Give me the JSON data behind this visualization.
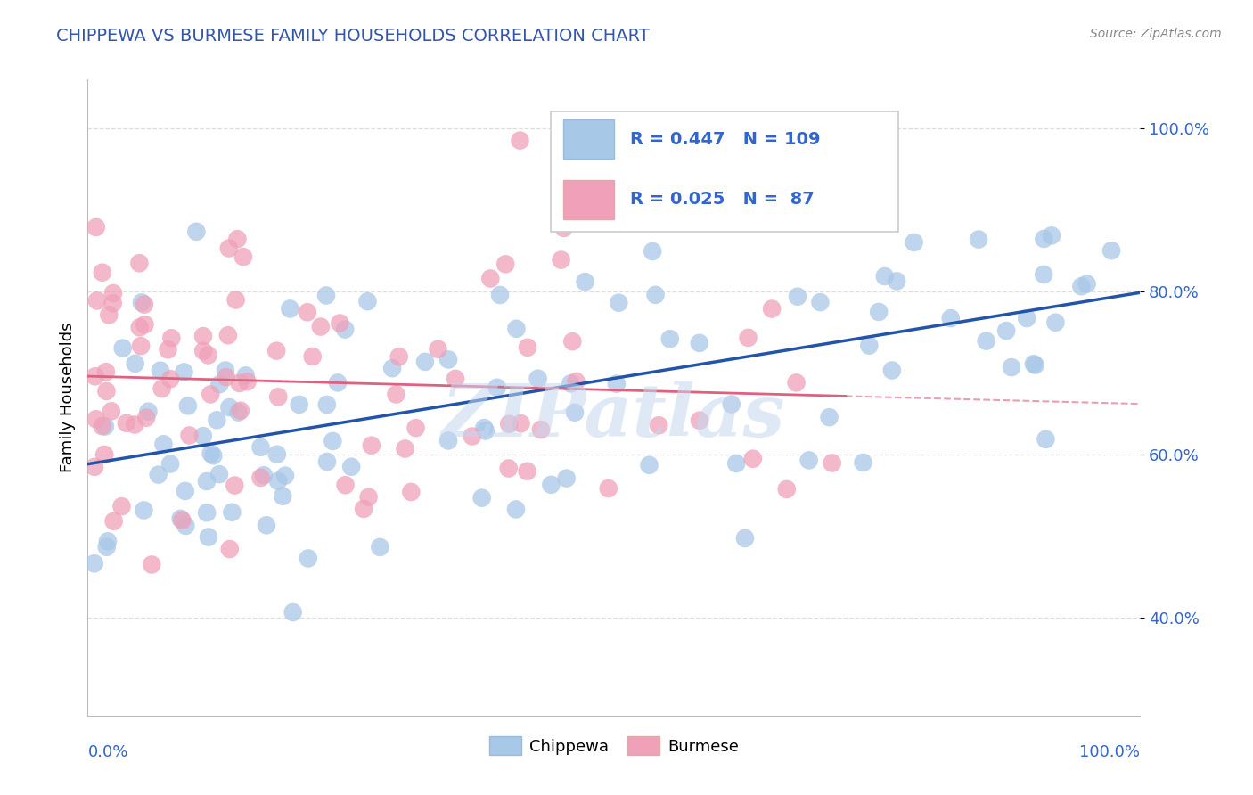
{
  "title": "CHIPPEWA VS BURMESE FAMILY HOUSEHOLDS CORRELATION CHART",
  "source_text": "Source: ZipAtlas.com",
  "ylabel": "Family Households",
  "chippewa_R": 0.447,
  "chippewa_N": 109,
  "burmese_R": 0.025,
  "burmese_N": 87,
  "chippewa_color": "#a8c8e8",
  "burmese_color": "#f0a0b8",
  "chippewa_line_color": "#2255aa",
  "burmese_line_color": "#e06080",
  "burmese_dash_color": "#e8a0b0",
  "title_color": "#3355aa",
  "source_color": "#888888",
  "watermark": "ZIPatlas",
  "ytick_labels": [
    "40.0%",
    "60.0%",
    "80.0%",
    "100.0%"
  ],
  "ytick_values": [
    0.4,
    0.6,
    0.8,
    1.0
  ],
  "xlim": [
    0.0,
    1.0
  ],
  "ylim": [
    0.28,
    1.06
  ],
  "grid_color": "#dddddd",
  "legend_edge_color": "#cccccc",
  "legend_text_color": "#3366cc"
}
